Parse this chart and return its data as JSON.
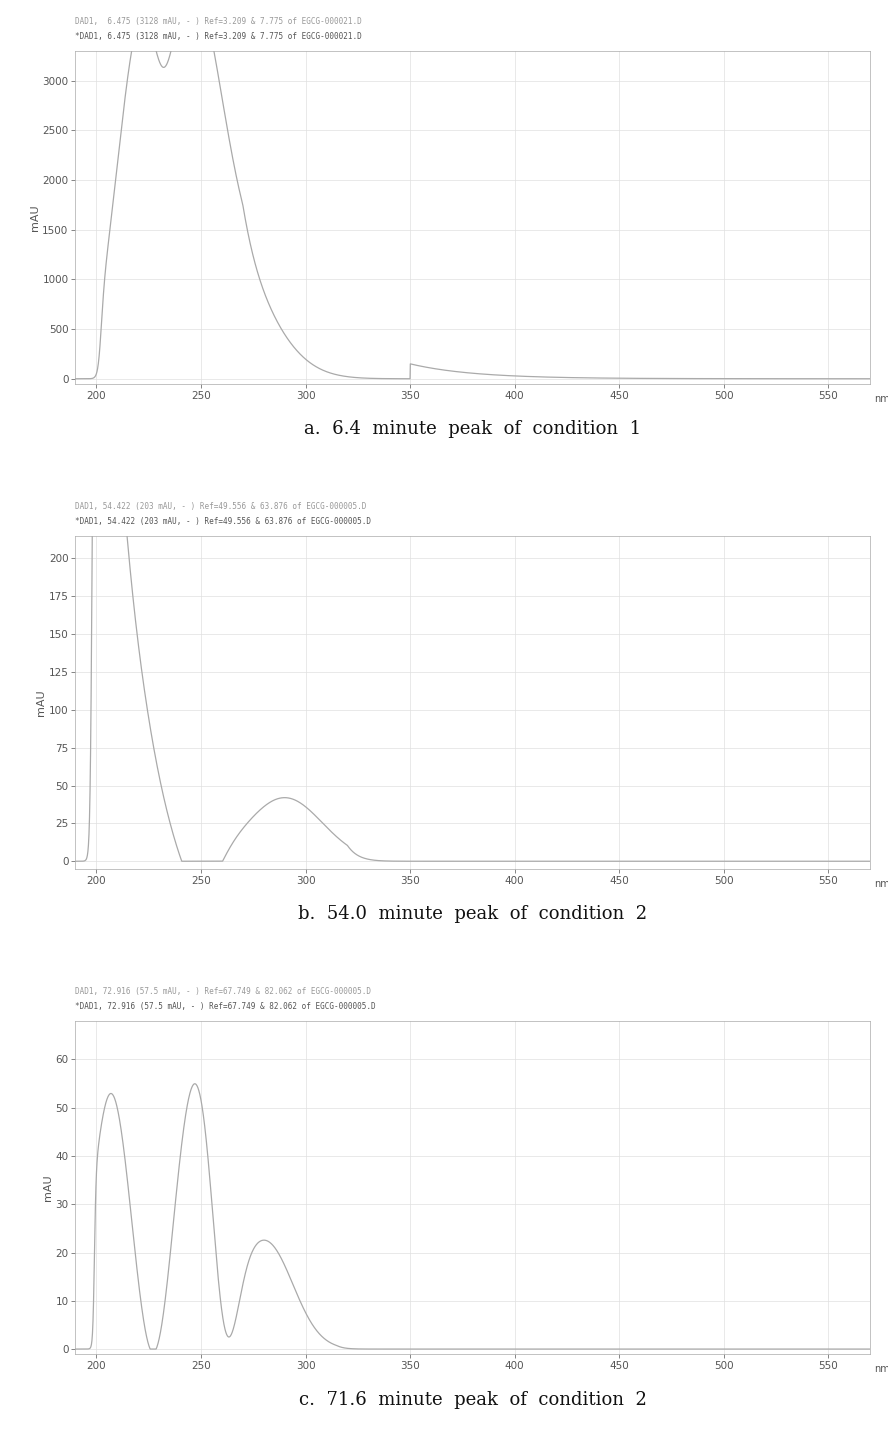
{
  "charts": [
    {
      "header_line1": "DAD1,  6.475 (3128 mAU, - ) Ref=3.209 & 7.775 of EGCG-000021.D",
      "header_line2": "*DAD1, 6.475 (3128 mAU, - ) Ref=3.209 & 7.775 of EGCG-000021.D",
      "ylabel": "mAU",
      "xlabel": "nm",
      "xmin": 190,
      "xmax": 570,
      "ymin": -50,
      "ymax": 3300,
      "yticks": [
        0,
        500,
        1000,
        1500,
        2000,
        2500,
        3000
      ],
      "xticks": [
        200,
        250,
        300,
        350,
        400,
        450,
        500,
        550
      ],
      "caption": "a.  6.4  minute  peak  of  condition  1",
      "spectrum": "a"
    },
    {
      "header_line1": "DAD1, 54.422 (203 mAU, - ) Ref=49.556 & 63.876 of EGCG-000005.D",
      "header_line2": "*DAD1, 54.422 (203 mAU, - ) Ref=49.556 & 63.876 of EGCG-000005.D",
      "ylabel": "mAU",
      "xlabel": "nm",
      "xmin": 190,
      "xmax": 570,
      "ymin": -5,
      "ymax": 215,
      "yticks": [
        0,
        25,
        50,
        75,
        100,
        125,
        150,
        175,
        200
      ],
      "xticks": [
        200,
        250,
        300,
        350,
        400,
        450,
        500,
        550
      ],
      "caption": "b.  54.0  minute  peak  of  condition  2",
      "spectrum": "b"
    },
    {
      "header_line1": "DAD1, 72.916 (57.5 mAU, - ) Ref=67.749 & 82.062 of EGCG-000005.D",
      "header_line2": "*DAD1, 72.916 (57.5 mAU, - ) Ref=67.749 & 82.062 of EGCG-000005.D",
      "ylabel": "mAU",
      "xlabel": "nm",
      "xmin": 190,
      "xmax": 570,
      "ymin": -1,
      "ymax": 68,
      "yticks": [
        0,
        10,
        20,
        30,
        40,
        50,
        60
      ],
      "xticks": [
        200,
        250,
        300,
        350,
        400,
        450,
        500,
        550
      ],
      "caption": "c.  71.6  minute  peak  of  condition  2",
      "spectrum": "c"
    }
  ],
  "line_color": "#aaaaaa",
  "header1_color": "#999999",
  "header2_color": "#555555",
  "caption_color": "#111111",
  "grid_color": "#e0e0e0",
  "spine_color": "#aaaaaa",
  "tick_color": "#555555",
  "tick_fontsize": 7.5,
  "ylabel_fontsize": 8,
  "caption_fontsize": 13,
  "header1_fontsize": 5.5,
  "header2_fontsize": 5.5
}
